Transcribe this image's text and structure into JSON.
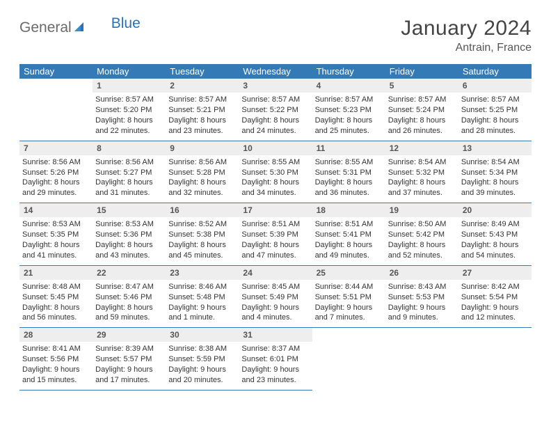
{
  "logo": {
    "text_gray": "General",
    "text_blue": "Blue"
  },
  "header": {
    "title": "January 2024",
    "location": "Antrain, France"
  },
  "colors": {
    "header_bg": "#337ab7",
    "header_text": "#ffffff",
    "daynum_bg": "#eeeeee",
    "cell_border": "#337ab7",
    "body_text": "#333333",
    "logo_gray": "#6a6a6a",
    "logo_blue": "#2a72b5"
  },
  "day_headers": [
    "Sunday",
    "Monday",
    "Tuesday",
    "Wednesday",
    "Thursday",
    "Friday",
    "Saturday"
  ],
  "weeks": [
    [
      {
        "blank": true
      },
      {
        "day": "1",
        "sunrise": "Sunrise: 8:57 AM",
        "sunset": "Sunset: 5:20 PM",
        "day1": "Daylight: 8 hours",
        "day2": "and 22 minutes."
      },
      {
        "day": "2",
        "sunrise": "Sunrise: 8:57 AM",
        "sunset": "Sunset: 5:21 PM",
        "day1": "Daylight: 8 hours",
        "day2": "and 23 minutes."
      },
      {
        "day": "3",
        "sunrise": "Sunrise: 8:57 AM",
        "sunset": "Sunset: 5:22 PM",
        "day1": "Daylight: 8 hours",
        "day2": "and 24 minutes."
      },
      {
        "day": "4",
        "sunrise": "Sunrise: 8:57 AM",
        "sunset": "Sunset: 5:23 PM",
        "day1": "Daylight: 8 hours",
        "day2": "and 25 minutes."
      },
      {
        "day": "5",
        "sunrise": "Sunrise: 8:57 AM",
        "sunset": "Sunset: 5:24 PM",
        "day1": "Daylight: 8 hours",
        "day2": "and 26 minutes."
      },
      {
        "day": "6",
        "sunrise": "Sunrise: 8:57 AM",
        "sunset": "Sunset: 5:25 PM",
        "day1": "Daylight: 8 hours",
        "day2": "and 28 minutes."
      }
    ],
    [
      {
        "day": "7",
        "sunrise": "Sunrise: 8:56 AM",
        "sunset": "Sunset: 5:26 PM",
        "day1": "Daylight: 8 hours",
        "day2": "and 29 minutes."
      },
      {
        "day": "8",
        "sunrise": "Sunrise: 8:56 AM",
        "sunset": "Sunset: 5:27 PM",
        "day1": "Daylight: 8 hours",
        "day2": "and 31 minutes."
      },
      {
        "day": "9",
        "sunrise": "Sunrise: 8:56 AM",
        "sunset": "Sunset: 5:28 PM",
        "day1": "Daylight: 8 hours",
        "day2": "and 32 minutes."
      },
      {
        "day": "10",
        "sunrise": "Sunrise: 8:55 AM",
        "sunset": "Sunset: 5:30 PM",
        "day1": "Daylight: 8 hours",
        "day2": "and 34 minutes."
      },
      {
        "day": "11",
        "sunrise": "Sunrise: 8:55 AM",
        "sunset": "Sunset: 5:31 PM",
        "day1": "Daylight: 8 hours",
        "day2": "and 36 minutes."
      },
      {
        "day": "12",
        "sunrise": "Sunrise: 8:54 AM",
        "sunset": "Sunset: 5:32 PM",
        "day1": "Daylight: 8 hours",
        "day2": "and 37 minutes."
      },
      {
        "day": "13",
        "sunrise": "Sunrise: 8:54 AM",
        "sunset": "Sunset: 5:34 PM",
        "day1": "Daylight: 8 hours",
        "day2": "and 39 minutes."
      }
    ],
    [
      {
        "day": "14",
        "sunrise": "Sunrise: 8:53 AM",
        "sunset": "Sunset: 5:35 PM",
        "day1": "Daylight: 8 hours",
        "day2": "and 41 minutes."
      },
      {
        "day": "15",
        "sunrise": "Sunrise: 8:53 AM",
        "sunset": "Sunset: 5:36 PM",
        "day1": "Daylight: 8 hours",
        "day2": "and 43 minutes."
      },
      {
        "day": "16",
        "sunrise": "Sunrise: 8:52 AM",
        "sunset": "Sunset: 5:38 PM",
        "day1": "Daylight: 8 hours",
        "day2": "and 45 minutes."
      },
      {
        "day": "17",
        "sunrise": "Sunrise: 8:51 AM",
        "sunset": "Sunset: 5:39 PM",
        "day1": "Daylight: 8 hours",
        "day2": "and 47 minutes."
      },
      {
        "day": "18",
        "sunrise": "Sunrise: 8:51 AM",
        "sunset": "Sunset: 5:41 PM",
        "day1": "Daylight: 8 hours",
        "day2": "and 49 minutes."
      },
      {
        "day": "19",
        "sunrise": "Sunrise: 8:50 AM",
        "sunset": "Sunset: 5:42 PM",
        "day1": "Daylight: 8 hours",
        "day2": "and 52 minutes."
      },
      {
        "day": "20",
        "sunrise": "Sunrise: 8:49 AM",
        "sunset": "Sunset: 5:43 PM",
        "day1": "Daylight: 8 hours",
        "day2": "and 54 minutes."
      }
    ],
    [
      {
        "day": "21",
        "sunrise": "Sunrise: 8:48 AM",
        "sunset": "Sunset: 5:45 PM",
        "day1": "Daylight: 8 hours",
        "day2": "and 56 minutes."
      },
      {
        "day": "22",
        "sunrise": "Sunrise: 8:47 AM",
        "sunset": "Sunset: 5:46 PM",
        "day1": "Daylight: 8 hours",
        "day2": "and 59 minutes."
      },
      {
        "day": "23",
        "sunrise": "Sunrise: 8:46 AM",
        "sunset": "Sunset: 5:48 PM",
        "day1": "Daylight: 9 hours",
        "day2": "and 1 minute."
      },
      {
        "day": "24",
        "sunrise": "Sunrise: 8:45 AM",
        "sunset": "Sunset: 5:49 PM",
        "day1": "Daylight: 9 hours",
        "day2": "and 4 minutes."
      },
      {
        "day": "25",
        "sunrise": "Sunrise: 8:44 AM",
        "sunset": "Sunset: 5:51 PM",
        "day1": "Daylight: 9 hours",
        "day2": "and 7 minutes."
      },
      {
        "day": "26",
        "sunrise": "Sunrise: 8:43 AM",
        "sunset": "Sunset: 5:53 PM",
        "day1": "Daylight: 9 hours",
        "day2": "and 9 minutes."
      },
      {
        "day": "27",
        "sunrise": "Sunrise: 8:42 AM",
        "sunset": "Sunset: 5:54 PM",
        "day1": "Daylight: 9 hours",
        "day2": "and 12 minutes."
      }
    ],
    [
      {
        "day": "28",
        "sunrise": "Sunrise: 8:41 AM",
        "sunset": "Sunset: 5:56 PM",
        "day1": "Daylight: 9 hours",
        "day2": "and 15 minutes."
      },
      {
        "day": "29",
        "sunrise": "Sunrise: 8:39 AM",
        "sunset": "Sunset: 5:57 PM",
        "day1": "Daylight: 9 hours",
        "day2": "and 17 minutes."
      },
      {
        "day": "30",
        "sunrise": "Sunrise: 8:38 AM",
        "sunset": "Sunset: 5:59 PM",
        "day1": "Daylight: 9 hours",
        "day2": "and 20 minutes."
      },
      {
        "day": "31",
        "sunrise": "Sunrise: 8:37 AM",
        "sunset": "Sunset: 6:01 PM",
        "day1": "Daylight: 9 hours",
        "day2": "and 23 minutes."
      },
      {
        "blank": true
      },
      {
        "blank": true
      },
      {
        "blank": true
      }
    ]
  ]
}
